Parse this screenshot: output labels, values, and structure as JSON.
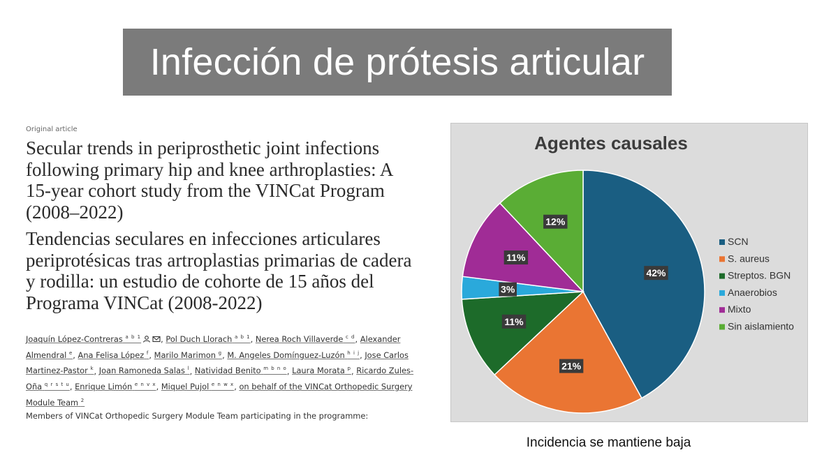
{
  "slide_title": "Infección de prótesis articular",
  "article": {
    "kicker": "Original article",
    "title_en": "Secular trends in periprosthetic joint infections following primary hip and knee arthroplasties: A 15-year cohort study from the VINCat Program (2008–2022)",
    "title_es": "Tendencias seculares en infecciones articulares periprotésicas tras artroplastias primarias de cadera y rodilla: un estudio de cohorte de 15 años del Programa VINCat (2008-2022)",
    "authors": [
      {
        "name": "Joaquín López-Contreras",
        "sup": "a b 1"
      },
      {
        "name": "Pol Duch Llorach",
        "sup": "a b 1"
      },
      {
        "name": "Nerea Roch Villaverde",
        "sup": "c d"
      },
      {
        "name": "Alexander Almendral",
        "sup": "e"
      },
      {
        "name": "Ana Felisa López",
        "sup": "f"
      },
      {
        "name": "Marilo Marimon",
        "sup": "g"
      },
      {
        "name": "M. Angeles Domínguez-Luzón",
        "sup": "h i j"
      },
      {
        "name": "Jose Carlos Martinez-Pastor",
        "sup": "k"
      },
      {
        "name": "Joan Ramoneda Salas",
        "sup": "l"
      },
      {
        "name": "Natividad Benito",
        "sup": "m b n o"
      },
      {
        "name": "Laura Morata",
        "sup": "p"
      },
      {
        "name": "Ricardo Zules-Oña",
        "sup": "q r s t u"
      },
      {
        "name": "Enrique Limón",
        "sup": "e n v x"
      },
      {
        "name": "Miquel Pujol",
        "sup": "e n w x"
      },
      {
        "name": "on behalf of the VINCat Orthopedic Surgery Module Team",
        "sup": "2"
      }
    ],
    "members_note": "Members of VINCat Orthopedic Surgery Module Team participating in the programme:"
  },
  "chart_data": {
    "type": "pie",
    "title": "Agentes causales",
    "categories": [
      "SCN",
      "S.  aureus",
      "Streptos. BGN",
      "Anaerobios",
      "Mixto",
      "Sin aislamiento"
    ],
    "values": [
      42,
      21,
      11,
      3,
      11,
      12
    ],
    "labels": [
      "42%",
      "21%",
      "11%",
      "3%",
      "11%",
      "12%"
    ],
    "colors": [
      "#1a5e82",
      "#ea7533",
      "#1d6b2a",
      "#2aa9db",
      "#a02c96",
      "#5aad35"
    ],
    "start_angle": "12 o'clock, clockwise",
    "legend_position": "right"
  },
  "caption": "Incidencia se mantiene baja"
}
